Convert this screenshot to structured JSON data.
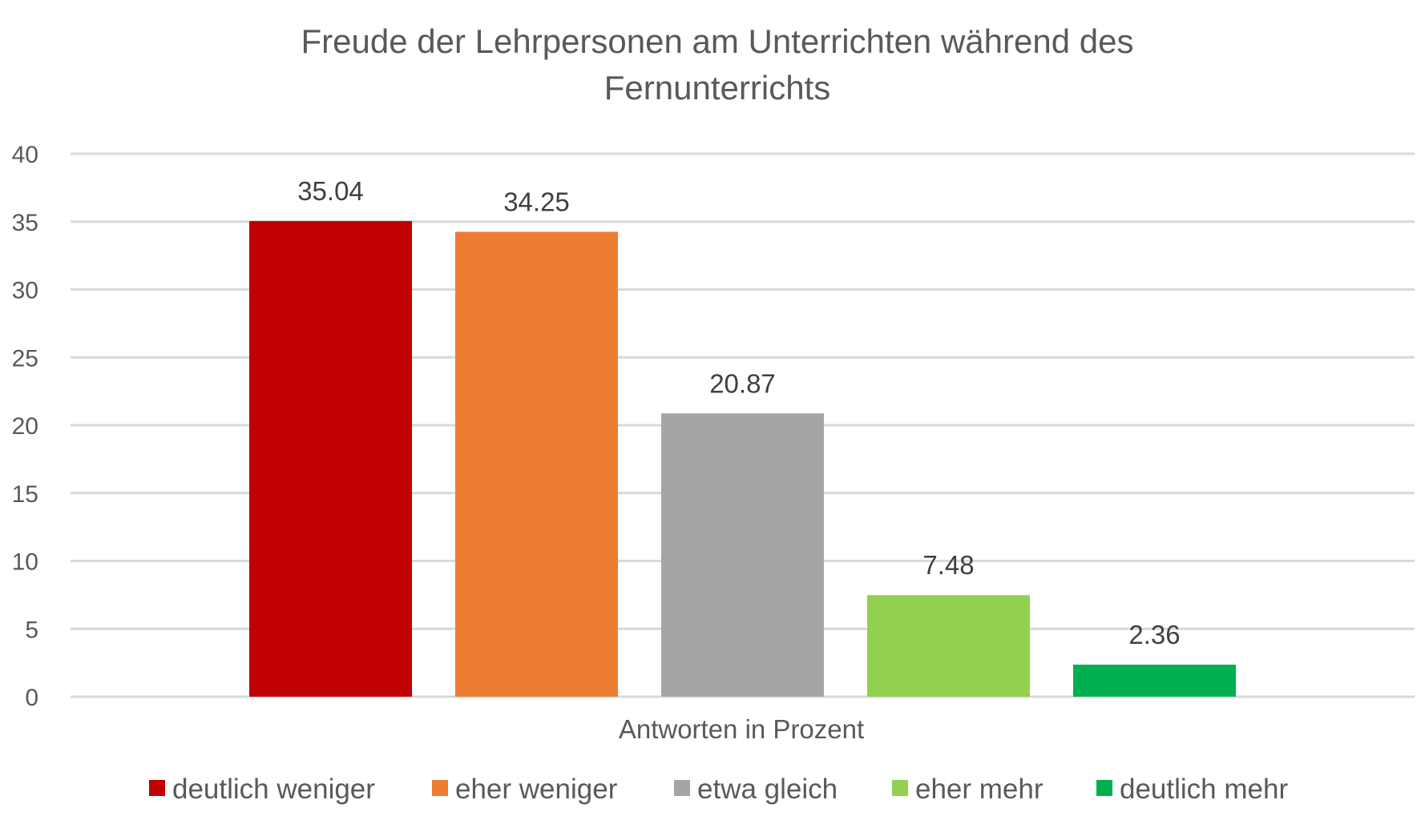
{
  "chart_data": {
    "type": "bar",
    "title_lines": [
      "Freude der Lehrpersonen am Unterrichten während des",
      "Fernunterrichts"
    ],
    "xlabel": "Antworten in Prozent",
    "ylabel": "",
    "ylim": [
      0,
      40
    ],
    "y_ticks": [
      "0",
      "5",
      "10",
      "15",
      "20",
      "25",
      "30",
      "35",
      "40"
    ],
    "y_tick_values": [
      0,
      5,
      10,
      15,
      20,
      25,
      30,
      35,
      40
    ],
    "grid": true,
    "legend_position": "bottom",
    "categories": [
      "Antworten in Prozent"
    ],
    "series": [
      {
        "name": "deutlich weniger",
        "values": [
          35.04
        ],
        "label": "35.04",
        "color": "#C00000"
      },
      {
        "name": "eher weniger",
        "values": [
          34.25
        ],
        "label": "34.25",
        "color": "#ED7D31"
      },
      {
        "name": "etwa gleich",
        "values": [
          20.87
        ],
        "label": "20.87",
        "color": "#A5A5A5"
      },
      {
        "name": "eher mehr",
        "values": [
          7.48
        ],
        "label": "7.48",
        "color": "#92D050"
      },
      {
        "name": "deutlich mehr",
        "values": [
          2.36
        ],
        "label": "2.36",
        "color": "#00B050"
      }
    ]
  }
}
